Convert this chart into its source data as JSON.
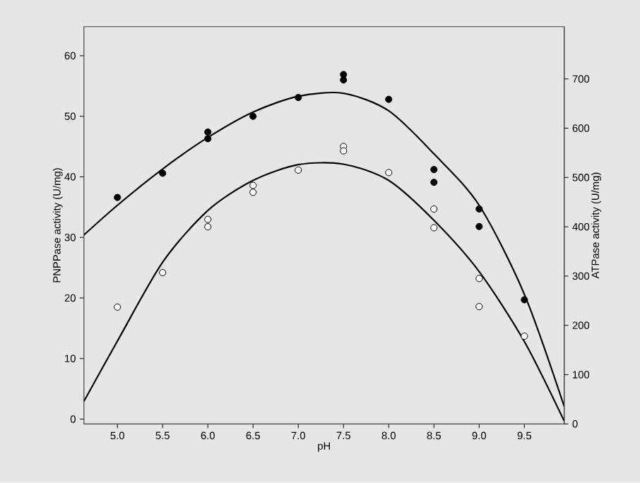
{
  "chart_data": {
    "type": "scatter",
    "xlabel": "pH",
    "ylabel": "PNPPase activity (U/mg)",
    "y2label": "ATPase activity (U/mg)",
    "xlim": [
      4.63,
      9.94
    ],
    "ylim": [
      -0.8,
      64.8
    ],
    "y2lim": [
      0,
      806
    ],
    "xticks": [
      {
        "value": 5.0,
        "label": "5.0"
      },
      {
        "value": 5.5,
        "label": "5.5"
      },
      {
        "value": 6.0,
        "label": "6.0"
      },
      {
        "value": 6.5,
        "label": "6.5"
      },
      {
        "value": 7.0,
        "label": "7.0"
      },
      {
        "value": 7.5,
        "label": "7.5"
      },
      {
        "value": 8.0,
        "label": "8.0"
      },
      {
        "value": 8.5,
        "label": "8.5"
      },
      {
        "value": 9.0,
        "label": "9.0"
      },
      {
        "value": 9.5,
        "label": "9.5"
      }
    ],
    "yticks": [
      0,
      10,
      20,
      30,
      40,
      50,
      60
    ],
    "y2ticks": [
      0,
      100,
      200,
      300,
      400,
      500,
      600,
      700
    ],
    "grid": false,
    "marker": "circle",
    "series": [
      {
        "color": "#000000",
        "axis": "y",
        "x": [
          5.0,
          5.5,
          6.0,
          6.0,
          6.5,
          7.0,
          7.5,
          7.5,
          8.0,
          8.5,
          8.5,
          9.0,
          9.0,
          9.5
        ],
        "values": [
          36.6,
          40.6,
          47.4,
          46.3,
          50.0,
          53.1,
          56.9,
          56.0,
          52.8,
          41.2,
          39.1,
          34.7,
          31.8,
          19.7
        ]
      },
      {
        "color": "#ffffff",
        "axis": "y2",
        "x": [
          5.0,
          5.5,
          6.0,
          6.0,
          6.5,
          6.5,
          7.0,
          7.5,
          7.5,
          8.0,
          8.5,
          8.5,
          9.0,
          9.0,
          9.5
        ],
        "values": [
          237,
          307,
          415,
          400,
          484,
          470,
          515,
          563,
          554,
          510,
          436,
          398,
          295,
          238,
          178
        ]
      },
      {
        "type": "line",
        "color": "#000000",
        "axis": "y",
        "marker": "none",
        "x": [
          4.63,
          5.0,
          5.5,
          6.0,
          6.5,
          7.0,
          7.5,
          8.0,
          8.5,
          9.0,
          9.5,
          9.94
        ],
        "values": [
          30.4,
          35.3,
          41.3,
          46.5,
          50.7,
          53.3,
          53.8,
          50.9,
          43.8,
          35.3,
          20.6,
          2.1
        ]
      },
      {
        "type": "line",
        "color": "#000000",
        "axis": "y2",
        "marker": "none",
        "x": [
          4.63,
          5.0,
          5.5,
          6.0,
          6.5,
          7.0,
          7.5,
          8.0,
          8.5,
          9.0,
          9.5,
          9.94
        ],
        "values": [
          46,
          168,
          328,
          433,
          494,
          526,
          527,
          494,
          413,
          309,
          167,
          6
        ]
      }
    ]
  }
}
